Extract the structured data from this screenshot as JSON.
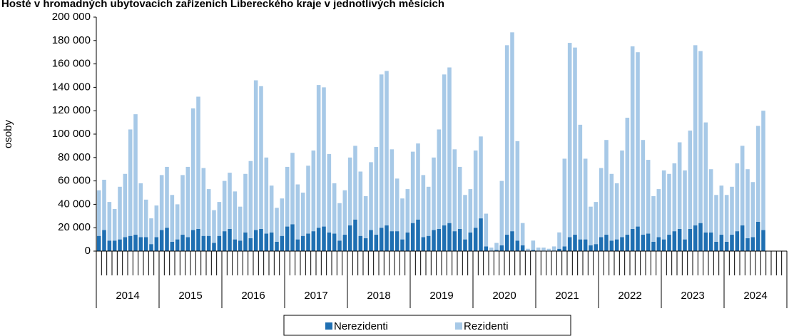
{
  "chart_data": {
    "type": "stacked_bar",
    "title": "Hosté v hromadných ubytovacích zařízeních Libereckého kraje v jednotlivých měsících",
    "y_label": "osoby",
    "categories": [
      null,
      null,
      null,
      null,
      null,
      null,
      null,
      null,
      null,
      null,
      null,
      null,
      null,
      null,
      null,
      null,
      null,
      null,
      null,
      null,
      null,
      null,
      null,
      null,
      null,
      null,
      null,
      null,
      null,
      null,
      null,
      null,
      null,
      null,
      null,
      null,
      null,
      null,
      null,
      null,
      null,
      null,
      null,
      null,
      null,
      null,
      null,
      null,
      null,
      null,
      null,
      null,
      null,
      null,
      null,
      null,
      null,
      null,
      null,
      null,
      null,
      null,
      null,
      null,
      null,
      null,
      null,
      null,
      null,
      null,
      null,
      null,
      null,
      null,
      null,
      null,
      null,
      null,
      null,
      null,
      null,
      null,
      null,
      null,
      null,
      null,
      null,
      null,
      null,
      null,
      null,
      null,
      null,
      null,
      null,
      null,
      null,
      null,
      null,
      null,
      null,
      null,
      null,
      null,
      null,
      null,
      null,
      null,
      null,
      null,
      null,
      null,
      null,
      null,
      null,
      null,
      null,
      null,
      null,
      null,
      null,
      null,
      null,
      null,
      null,
      null,
      null,
      null,
      null,
      null,
      null,
      null
    ],
    "year_labels": [
      "2014",
      "2015",
      "2016",
      "2017",
      "2018",
      "2019",
      "2020",
      "2021",
      "2022",
      "2023",
      "2024"
    ],
    "series": [
      {
        "name": "Nerezidenti",
        "color": "#1f6fb2",
        "values": [
          13000,
          18000,
          9000,
          9000,
          10000,
          12000,
          13000,
          14000,
          12000,
          12000,
          6000,
          12000,
          18000,
          20000,
          8000,
          10000,
          14000,
          12000,
          18000,
          19000,
          13000,
          13000,
          7000,
          13000,
          17000,
          19000,
          10000,
          9000,
          16000,
          11000,
          18000,
          19000,
          15000,
          16000,
          8000,
          13000,
          21000,
          23000,
          10000,
          13000,
          15000,
          17000,
          20000,
          21000,
          16000,
          15000,
          9000,
          14000,
          22000,
          27000,
          13000,
          11000,
          18000,
          14000,
          20000,
          22000,
          17000,
          17000,
          10000,
          16000,
          24000,
          27000,
          12000,
          13000,
          18000,
          19000,
          22000,
          24000,
          17000,
          19000,
          10000,
          16000,
          20000,
          28000,
          4000,
          500,
          1000,
          5000,
          14000,
          17000,
          9000,
          5000,
          300,
          1000,
          400,
          400,
          300,
          500,
          2000,
          4000,
          12000,
          14000,
          10000,
          10000,
          5000,
          6000,
          12000,
          14000,
          9000,
          10000,
          12000,
          14000,
          19000,
          21000,
          14000,
          15000,
          8000,
          12000,
          10000,
          14000,
          17000,
          19000,
          10000,
          19000,
          22000,
          24000,
          16000,
          16000,
          8000,
          14000,
          8000,
          14000,
          17000,
          22000,
          11000,
          12000,
          25000,
          18000,
          null,
          null,
          null,
          null
        ]
      },
      {
        "name": "Rezidenti",
        "color": "#a7c9e7",
        "values": [
          39000,
          43000,
          33000,
          27000,
          45000,
          54000,
          91000,
          103000,
          46000,
          32000,
          22000,
          27000,
          47000,
          52000,
          40000,
          30000,
          51000,
          60000,
          104000,
          113000,
          58000,
          40000,
          28000,
          29000,
          43000,
          48000,
          41000,
          29000,
          50000,
          66000,
          128000,
          122000,
          65000,
          40000,
          29000,
          32000,
          51000,
          61000,
          47000,
          37000,
          58000,
          69000,
          122000,
          119000,
          67000,
          43000,
          32000,
          38000,
          58000,
          63000,
          55000,
          36000,
          58000,
          75000,
          131000,
          132000,
          70000,
          45000,
          35000,
          37000,
          61000,
          65000,
          53000,
          42000,
          62000,
          85000,
          129000,
          133000,
          70000,
          53000,
          38000,
          37000,
          66000,
          70000,
          28000,
          2500,
          6000,
          55000,
          162000,
          170000,
          85000,
          19000,
          1700,
          8000,
          2600,
          2600,
          1700,
          3500,
          14000,
          75000,
          166000,
          160000,
          98000,
          69000,
          33000,
          36000,
          59000,
          81000,
          57000,
          48000,
          74000,
          100000,
          156000,
          149000,
          81000,
          63000,
          39000,
          41000,
          59000,
          52000,
          58000,
          74000,
          59000,
          84000,
          154000,
          147000,
          94000,
          54000,
          40000,
          42000,
          40000,
          41000,
          58000,
          68000,
          59000,
          47000,
          82000,
          102000,
          null,
          null,
          null,
          null
        ]
      }
    ],
    "ylim": [
      0,
      200000
    ],
    "yticks": [
      0,
      {
        "value": 20000,
        "label": "20 000"
      },
      {
        "value": 40000,
        "label": "40 000"
      },
      {
        "value": 60000,
        "label": "60 000"
      },
      {
        "value": 80000,
        "label": "80 000"
      },
      {
        "value": 100000,
        "label": "100 000"
      },
      {
        "value": 120000,
        "label": "120 000"
      },
      {
        "value": 140000,
        "label": "140 000"
      },
      {
        "value": 160000,
        "label": "160 000"
      },
      {
        "value": 180000,
        "label": "180 000"
      },
      {
        "value": 200000,
        "label": "200 000"
      }
    ],
    "grid": false,
    "legend": "bottom"
  }
}
